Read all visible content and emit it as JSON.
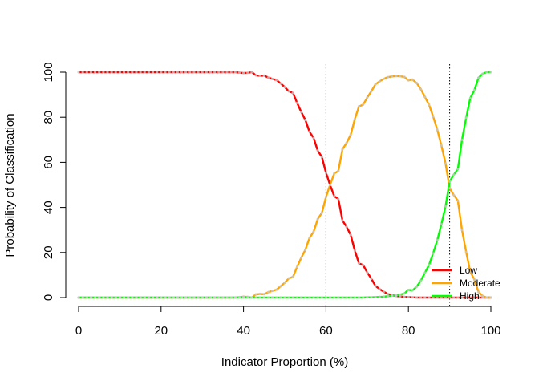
{
  "chart_data": {
    "type": "line",
    "title": "",
    "xlabel": "Indicator Proportion (%)",
    "ylabel": "Probability of Classification",
    "xlim": [
      0,
      100
    ],
    "ylim": [
      0,
      100
    ],
    "xticks": [
      "0",
      "20",
      "40",
      "60",
      "80",
      "100"
    ],
    "yticks": [
      "0",
      "20",
      "40",
      "60",
      "80",
      "100"
    ],
    "grid": false,
    "legend_position": "bottom-right",
    "reference_lines_x": [
      60,
      90
    ],
    "x": [
      0,
      1,
      2,
      3,
      4,
      5,
      6,
      7,
      8,
      9,
      10,
      11,
      12,
      13,
      14,
      15,
      16,
      17,
      18,
      19,
      20,
      21,
      22,
      23,
      24,
      25,
      26,
      27,
      28,
      29,
      30,
      31,
      32,
      33,
      34,
      35,
      36,
      37,
      38,
      39,
      40,
      41,
      42,
      43,
      44,
      45,
      46,
      47,
      48,
      49,
      50,
      51,
      52,
      53,
      54,
      55,
      56,
      57,
      58,
      59,
      60,
      61,
      62,
      63,
      64,
      65,
      66,
      67,
      68,
      69,
      70,
      71,
      72,
      73,
      74,
      75,
      76,
      77,
      78,
      79,
      80,
      81,
      82,
      83,
      84,
      85,
      86,
      87,
      88,
      89,
      90,
      91,
      92,
      93,
      94,
      95,
      96,
      97,
      98,
      99,
      100
    ],
    "series": [
      {
        "name": "Low",
        "color": "#ff0000",
        "values": [
          100,
          100,
          100,
          100,
          100,
          100,
          100,
          100,
          100,
          100,
          100,
          100,
          100,
          100,
          100,
          100,
          100,
          100,
          100,
          100,
          100,
          100,
          100,
          100,
          100,
          100,
          100,
          100,
          100,
          100,
          100,
          100,
          100,
          100,
          100,
          100,
          100,
          100,
          100,
          99.8,
          99.6,
          99.7,
          100,
          98.6,
          98.4,
          98.5,
          97.6,
          97,
          96.5,
          95,
          93.4,
          91.5,
          90.8,
          86.4,
          82.3,
          78.8,
          73.6,
          70.8,
          65.2,
          62.4,
          55.4,
          50,
          45,
          43.8,
          34.2,
          31.4,
          27.8,
          20.8,
          15.2,
          14.4,
          11.2,
          8.4,
          5.2,
          3.8,
          2.6,
          1.6,
          1.1,
          0.7,
          0.5,
          0.3,
          0.2,
          0.1,
          0,
          0,
          0,
          0,
          0,
          0,
          0,
          0,
          0,
          0,
          0,
          0,
          0,
          0,
          0,
          0,
          0,
          0,
          0
        ]
      },
      {
        "name": "Moderate",
        "color": "#ffa500",
        "values": [
          0,
          0,
          0,
          0,
          0,
          0,
          0,
          0,
          0,
          0,
          0,
          0,
          0,
          0,
          0,
          0,
          0,
          0,
          0,
          0,
          0,
          0,
          0,
          0,
          0,
          0,
          0,
          0,
          0,
          0,
          0,
          0,
          0,
          0,
          0,
          0,
          0,
          0,
          0,
          0.2,
          0.4,
          0.3,
          0,
          1.4,
          1.6,
          1.5,
          2.4,
          3,
          3.5,
          5,
          6.6,
          8.5,
          9.2,
          13.6,
          17.7,
          21.2,
          26.4,
          29.2,
          34.8,
          37.6,
          44.6,
          50,
          55,
          56.2,
          65.8,
          68.6,
          72.2,
          79.2,
          84.8,
          85.6,
          88.7,
          91.5,
          94.6,
          95.9,
          97,
          97.8,
          98.1,
          98.3,
          98.2,
          97.9,
          96.4,
          96.7,
          95.2,
          92.5,
          89,
          85.5,
          80.4,
          74.5,
          67.5,
          59.5,
          48.5,
          45.5,
          43,
          30,
          20.2,
          11.5,
          8,
          2.5,
          0.7,
          0,
          0
        ]
      },
      {
        "name": "High",
        "color": "#00ff00",
        "values": [
          0,
          0,
          0,
          0,
          0,
          0,
          0,
          0,
          0,
          0,
          0,
          0,
          0,
          0,
          0,
          0,
          0,
          0,
          0,
          0,
          0,
          0,
          0,
          0,
          0,
          0,
          0,
          0,
          0,
          0,
          0,
          0,
          0,
          0,
          0,
          0,
          0,
          0,
          0,
          0,
          0,
          0,
          0,
          0,
          0,
          0,
          0,
          0,
          0,
          0,
          0,
          0,
          0,
          0,
          0,
          0,
          0,
          0,
          0,
          0,
          0,
          0,
          0,
          0,
          0,
          0,
          0,
          0,
          0,
          0,
          0.1,
          0.1,
          0.2,
          0.3,
          0.4,
          0.6,
          0.8,
          1,
          1.3,
          1.8,
          3.4,
          3.2,
          4.8,
          7.5,
          11,
          14.5,
          19.6,
          25.5,
          32.5,
          40.5,
          51.5,
          54.5,
          57,
          70,
          79.8,
          88.5,
          92,
          97.5,
          99.3,
          100,
          100
        ]
      }
    ]
  }
}
